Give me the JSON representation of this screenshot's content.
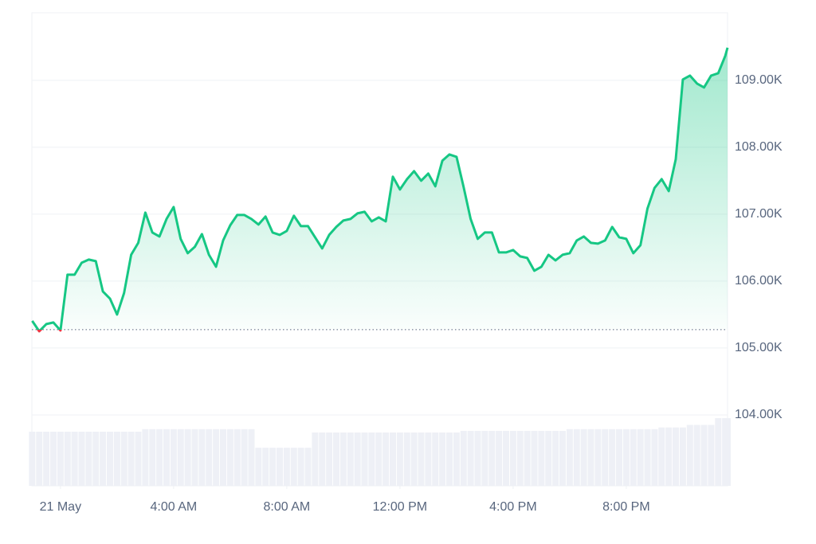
{
  "chart_data": {
    "type": "line",
    "x": [
      -1.0,
      -0.75,
      -0.5,
      -0.25,
      0,
      0.25,
      0.5,
      0.75,
      1.0,
      1.25,
      1.5,
      1.75,
      2.0,
      2.25,
      2.5,
      2.75,
      3.0,
      3.25,
      3.5,
      3.75,
      4.0,
      4.25,
      4.5,
      4.75,
      5.0,
      5.25,
      5.5,
      5.75,
      6.0,
      6.25,
      6.5,
      6.75,
      7.0,
      7.25,
      7.5,
      7.75,
      8.0,
      8.25,
      8.5,
      8.75,
      9.0,
      9.25,
      9.5,
      9.75,
      10.0,
      10.25,
      10.5,
      10.75,
      11.0,
      11.25,
      11.5,
      11.75,
      12.0,
      12.25,
      12.5,
      12.75,
      13.0,
      13.25,
      13.5,
      13.75,
      14.0,
      14.25,
      14.5,
      14.75,
      15.0,
      15.25,
      15.5,
      15.75,
      16.0,
      16.25,
      16.5,
      16.75,
      17.0,
      17.25,
      17.5,
      17.75,
      18.0,
      18.25,
      18.5,
      18.75,
      19.0,
      19.25,
      19.5,
      19.75,
      20.0,
      20.25,
      20.5,
      20.75,
      21.0,
      21.25,
      21.5,
      21.75,
      22.0,
      22.25,
      22.5,
      22.75,
      23.0,
      23.25,
      23.5,
      23.58
    ],
    "series": [
      {
        "color": "#16c784",
        "below_color": "#ea3943",
        "values": [
          105405,
          105250,
          105357,
          105381,
          105262,
          106095,
          106095,
          106274,
          106321,
          106298,
          105845,
          105738,
          105500,
          105821,
          106393,
          106571,
          107024,
          106726,
          106667,
          106929,
          107107,
          106631,
          106417,
          106512,
          106702,
          106393,
          106214,
          106607,
          106833,
          106988,
          106988,
          106929,
          106845,
          106964,
          106726,
          106690,
          106750,
          106976,
          106821,
          106821,
          106655,
          106488,
          106690,
          106810,
          106905,
          106929,
          107012,
          107036,
          106893,
          106952,
          106893,
          107560,
          107369,
          107524,
          107643,
          107500,
          107607,
          107417,
          107798,
          107893,
          107857,
          107405,
          106929,
          106631,
          106726,
          106726,
          106429,
          106429,
          106464,
          106369,
          106345,
          106155,
          106214,
          106393,
          106310,
          106393,
          106417,
          106607,
          106667,
          106571,
          106560,
          106607,
          106810,
          106655,
          106631,
          106417,
          106536,
          107083,
          107393,
          107524,
          107345,
          107821,
          109012,
          109071,
          108952,
          108893,
          109071,
          109107,
          109369,
          109488
        ],
        "volume": [
          64,
          64,
          64,
          64,
          64,
          64,
          64,
          64,
          64,
          64,
          64,
          64,
          64,
          64,
          64,
          64,
          67,
          67,
          67,
          67,
          67,
          67,
          67,
          67,
          67,
          67,
          67,
          67,
          67,
          67,
          67,
          67,
          45,
          45,
          45,
          45,
          45,
          45,
          45,
          45,
          63,
          63,
          63,
          63,
          63,
          63,
          63,
          63,
          63,
          63,
          63,
          63,
          63,
          63,
          63,
          63,
          63,
          63,
          63,
          63,
          63,
          65,
          65,
          65,
          65,
          65,
          65,
          65,
          65,
          65,
          65,
          65,
          65,
          65,
          65,
          65,
          67,
          67,
          67,
          67,
          67,
          67,
          67,
          67,
          67,
          67,
          67,
          67,
          67,
          69,
          69,
          69,
          69,
          72,
          72,
          72,
          72,
          80,
          80,
          80
        ]
      }
    ],
    "baseline": 105274,
    "xlim": [
      -1.01,
      23.58
    ],
    "xticks": [
      {
        "value": 0,
        "label": "21 May"
      },
      {
        "value": 4,
        "label": "4:00 AM"
      },
      {
        "value": 8,
        "label": "8:00 AM"
      },
      {
        "value": 12,
        "label": "12:00 PM"
      },
      {
        "value": 16,
        "label": "4:00 PM"
      },
      {
        "value": 20,
        "label": "8:00 PM"
      }
    ],
    "ylim": [
      102940,
      110010
    ],
    "yticks": [
      {
        "value": 104000,
        "label": "104.00K"
      },
      {
        "value": 105000,
        "label": "105.00K"
      },
      {
        "value": 106000,
        "label": "106.00K"
      },
      {
        "value": 107000,
        "label": "107.00K"
      },
      {
        "value": 108000,
        "label": "108.00K"
      },
      {
        "value": 109000,
        "label": "109.00K"
      }
    ],
    "grid": true
  }
}
